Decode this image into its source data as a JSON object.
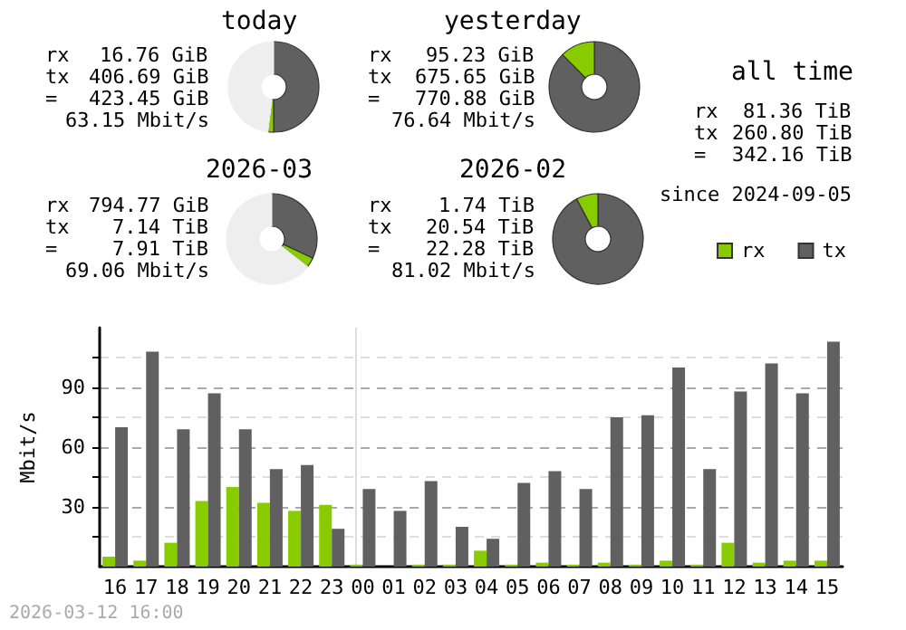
{
  "chart_data": [
    {
      "type": "donut",
      "title": "today",
      "categories": [
        null,
        null,
        null
      ],
      "values": [
        50,
        2,
        48
      ],
      "colors": [
        "#606060",
        "#88cc00",
        "#eeeeee"
      ],
      "annotations": [
        "rx",
        "16.76 GiB",
        "tx",
        "406.69 GiB",
        "=",
        "423.45 GiB",
        "63.15 Mbit/s"
      ]
    },
    {
      "type": "donut",
      "title": "yesterday",
      "categories": [
        null,
        null
      ],
      "values": [
        87.6,
        12.4
      ],
      "colors": [
        "#606060",
        "#88cc00"
      ],
      "annotations": [
        "rx",
        "95.23 GiB",
        "tx",
        "675.65 GiB",
        "=",
        "770.88 GiB",
        "76.64 Mbit/s"
      ]
    },
    {
      "type": "other",
      "title": "all time",
      "annotations": [
        "rx",
        "81.36 TiB",
        "tx",
        "260.80 TiB",
        "=",
        "342.16 TiB",
        "since 2024-09-05"
      ]
    },
    {
      "type": "donut",
      "title": "2026-03",
      "categories": [
        null,
        null,
        null
      ],
      "values": [
        32,
        3.5,
        64.5
      ],
      "colors": [
        "#606060",
        "#88cc00",
        "#eeeeee"
      ],
      "annotations": [
        "rx",
        "794.77 GiB",
        "tx",
        "7.14 TiB",
        "=",
        "7.91 TiB",
        "69.06 Mbit/s"
      ]
    },
    {
      "type": "donut",
      "title": "2026-02",
      "categories": [
        null,
        null
      ],
      "values": [
        92.2,
        7.8
      ],
      "colors": [
        "#606060",
        "#88cc00"
      ],
      "annotations": [
        "rx",
        "1.74 TiB",
        "tx",
        "20.54 TiB",
        "=",
        "22.28 TiB",
        "81.02 Mbit/s"
      ]
    },
    {
      "type": "bar",
      "ylabel": "Mbit/s",
      "categories": [
        "16",
        "17",
        "18",
        "19",
        "20",
        "21",
        "22",
        "23",
        "00",
        "01",
        "02",
        "03",
        "04",
        "05",
        "06",
        "07",
        "08",
        "09",
        "10",
        "11",
        "12",
        "13",
        "14",
        "15"
      ],
      "series": [
        {
          "name": "rx",
          "color": "#88cc00",
          "values": [
            5,
            3,
            12,
            33,
            40,
            32,
            28,
            31,
            1,
            0,
            1,
            1,
            8,
            1,
            2,
            1,
            2,
            1,
            3,
            1,
            12,
            2,
            3,
            3
          ]
        },
        {
          "name": "tx",
          "color": "#606060",
          "values": [
            70,
            108,
            69,
            87,
            69,
            49,
            51,
            19,
            39,
            28,
            43,
            20,
            14,
            42,
            48,
            39,
            75,
            76,
            100,
            49,
            88,
            102,
            87,
            113
          ]
        }
      ],
      "ylim": [
        0,
        120
      ],
      "yticks": [
        {
          "value": 15,
          "label": null
        },
        30,
        {
          "value": 45,
          "label": null
        },
        60,
        {
          "value": 75,
          "label": null
        },
        90,
        {
          "value": 105,
          "label": null
        }
      ],
      "grid": "y",
      "legend": "top right",
      "ref_lines": [
        {
          "axis": "x",
          "value": "00",
          "color": "#dddddd"
        }
      ],
      "annotations": [
        "2026-03-12 16:00"
      ]
    }
  ]
}
